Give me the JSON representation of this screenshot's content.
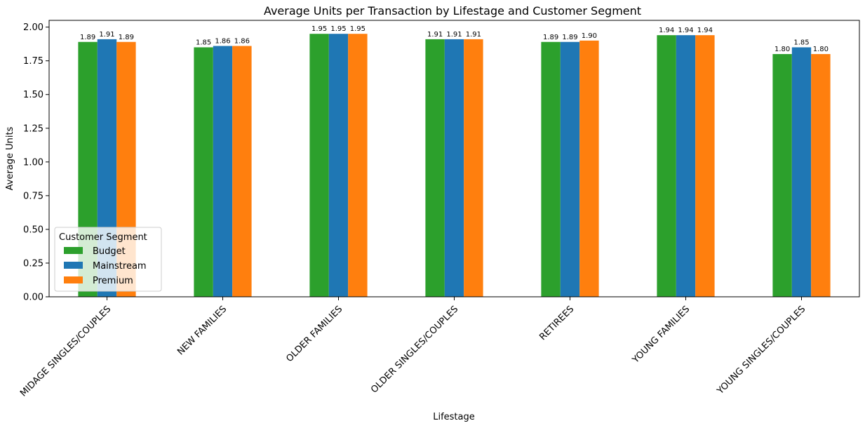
{
  "chart_data": {
    "type": "bar",
    "title": "Average Units per Transaction by Lifestage and Customer Segment",
    "xlabel": "Lifestage",
    "ylabel": "Average Units",
    "ylim": [
      0,
      2.05
    ],
    "yticks": [
      0.0,
      0.25,
      0.5,
      0.75,
      1.0,
      1.25,
      1.5,
      1.75,
      2.0
    ],
    "ytick_labels": [
      "0.00",
      "0.25",
      "0.50",
      "0.75",
      "1.00",
      "1.25",
      "1.50",
      "1.75",
      "2.00"
    ],
    "grid": false,
    "categories": [
      "MIDAGE SINGLES/COUPLES",
      "NEW FAMILIES",
      "OLDER FAMILIES",
      "OLDER SINGLES/COUPLES",
      "RETIREES",
      "YOUNG FAMILIES",
      "YOUNG SINGLES/COUPLES"
    ],
    "series": [
      {
        "name": "Budget",
        "color": "#2ca02c",
        "values": [
          1.89,
          1.85,
          1.95,
          1.91,
          1.89,
          1.94,
          1.8
        ],
        "labels": [
          "1.89",
          "1.85",
          "1.95",
          "1.91",
          "1.89",
          "1.94",
          "1.80"
        ]
      },
      {
        "name": "Mainstream",
        "color": "#1f77b4",
        "values": [
          1.91,
          1.86,
          1.95,
          1.91,
          1.89,
          1.94,
          1.85
        ],
        "labels": [
          "1.91",
          "1.86",
          "1.95",
          "1.91",
          "1.89",
          "1.94",
          "1.85"
        ]
      },
      {
        "name": "Premium",
        "color": "#ff7f0e",
        "values": [
          1.89,
          1.86,
          1.95,
          1.91,
          1.9,
          1.94,
          1.8
        ],
        "labels": [
          "1.89",
          "1.86",
          "1.95",
          "1.91",
          "1.90",
          "1.94",
          "1.80"
        ]
      }
    ],
    "legend": {
      "title": "Customer Segment",
      "placement": "lower-left"
    }
  }
}
